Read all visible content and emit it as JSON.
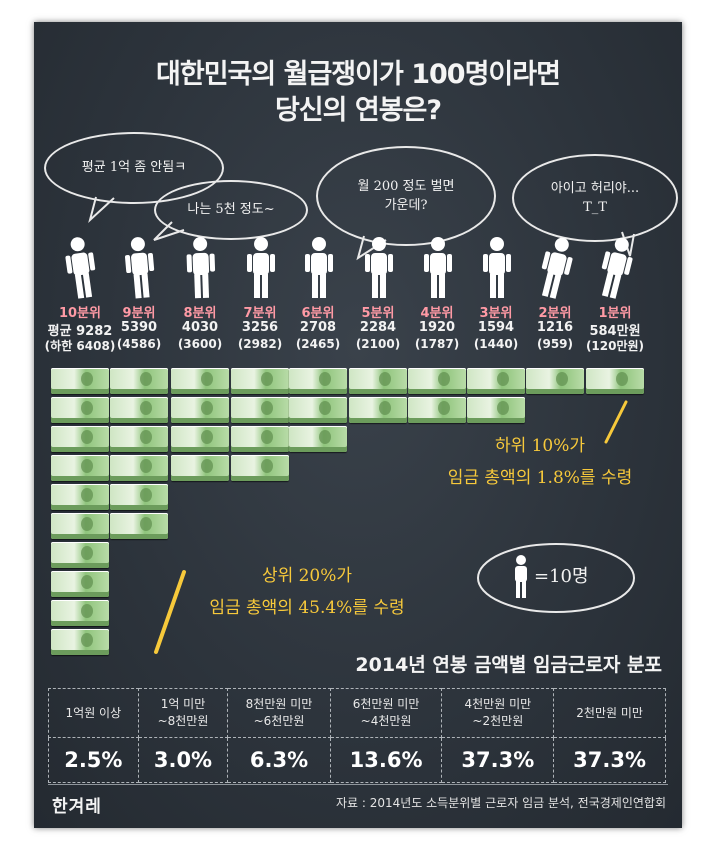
{
  "title": {
    "line1": "대한민국의 월급쟁이가 100명이라면",
    "line2": "당신의 연봉은?"
  },
  "bubbles": [
    {
      "text": "평균 1억 좀 안됨ㅋ"
    },
    {
      "text": "나는 5천 정도~"
    },
    {
      "text": "월 200 정도 벌면\n가운데?"
    },
    {
      "text": "아이고 허리야...\nT_T"
    }
  ],
  "chart_data": {
    "type": "bar",
    "title": "대한민국의 월급쟁이가 100명이라면 당신의 연봉은?",
    "categories": [
      "10분위",
      "9분위",
      "8분위",
      "7분위",
      "6분위",
      "5분위",
      "4분위",
      "3분위",
      "2분위",
      "1분위"
    ],
    "series": [
      {
        "name": "평균",
        "values": [
          9282,
          5390,
          4030,
          3256,
          2708,
          2284,
          1920,
          1594,
          1216,
          584
        ]
      },
      {
        "name": "하한",
        "values": [
          6408,
          4586,
          3600,
          2982,
          2465,
          2100,
          1787,
          1440,
          959,
          120
        ]
      }
    ],
    "avg_labels": [
      "평균 9282",
      "5390",
      "4030",
      "3256",
      "2708",
      "2284",
      "1920",
      "1594",
      "1216",
      "584만원"
    ],
    "low_labels": [
      "(하한 6408)",
      "(4586)",
      "(3600)",
      "(2982)",
      "(2465)",
      "(2100)",
      "(1787)",
      "(1440)",
      "(959)",
      "(120만원)"
    ],
    "unit": "만원"
  },
  "notes": {
    "bottom_line1": "하위 10%가",
    "bottom_line2": "임금 총액의 1.8%를 수령",
    "top_line1": "상위 20%가",
    "top_line2": "임금 총액의 45.4%를 수령"
  },
  "legend": {
    "text": "=10명"
  },
  "table": {
    "title": "2014년 연봉 금액별 임금근로자 분포",
    "headers": [
      "1억원 이상",
      "1억 미만\n~8천만원",
      "8천만원 미만\n~6천만원",
      "6천만원 미만\n~4천만원",
      "4천만원 미만\n~2천만원",
      "2천만원 미만"
    ],
    "values": [
      "2.5%",
      "3.0%",
      "6.3%",
      "13.6%",
      "37.3%",
      "37.3%"
    ]
  },
  "footer": {
    "logo": "한겨레",
    "source": "자료 : 2014년도 소득분위별 근로자 임금 분석, 전국경제인연합회"
  },
  "colors": {
    "board": "#2c333b",
    "decile": "#ff9aa5",
    "note": "#f7c93b",
    "money": "#8fc47c"
  }
}
